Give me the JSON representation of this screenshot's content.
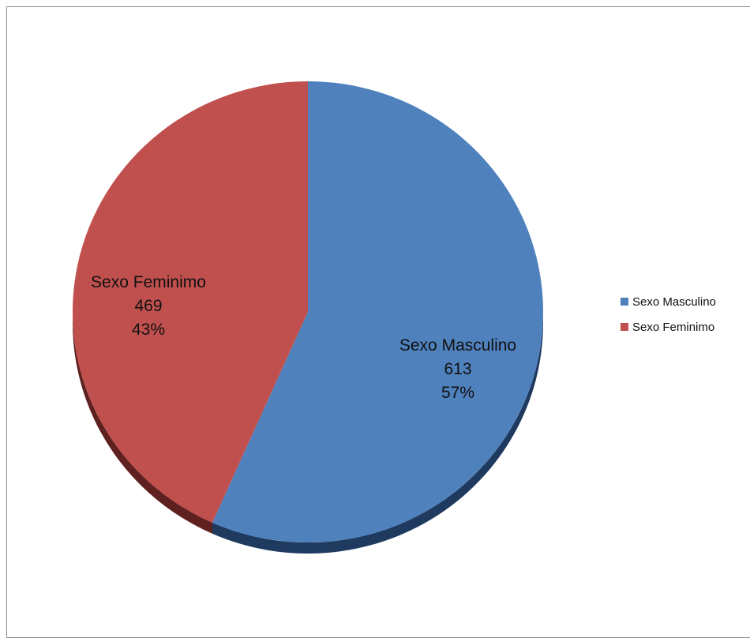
{
  "chart_data": {
    "type": "pie",
    "title": "",
    "slices": [
      {
        "label": "Sexo Masculino",
        "value": 613,
        "percent": "57%",
        "color": "#4F81BD",
        "side_color": "#1F3A5F"
      },
      {
        "label": "Sexo Feminimo",
        "value": 469,
        "percent": "43%",
        "color": "#C0504D",
        "side_color": "#5E2120"
      }
    ],
    "legend": {
      "placement": "right",
      "items": [
        {
          "label": "Sexo Masculino",
          "color": "#4F81BD"
        },
        {
          "label": "Sexo Feminimo",
          "color": "#C0504D"
        }
      ]
    }
  }
}
